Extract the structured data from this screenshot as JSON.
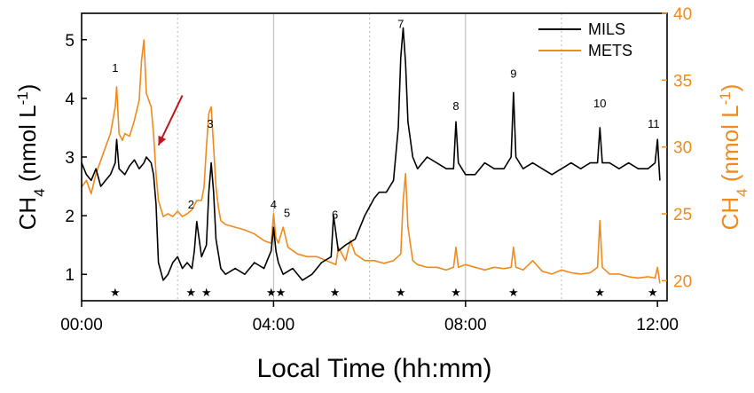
{
  "colors": {
    "mils": "#000000",
    "mets": "#f08a1c",
    "arrow": "#c0161d",
    "grid": "#b8b8b8"
  },
  "chart_data": {
    "type": "line",
    "xlabel": "Local Time (hh:mm)",
    "ylabel_left": {
      "base": "CH",
      "sub": "4",
      "unit": " (nmol L",
      "exp": "-1",
      "close": ")"
    },
    "ylabel_right": {
      "base": "CH",
      "sub": "4",
      "unit": " (nmol L",
      "exp": "-1",
      "close": ")"
    },
    "x_range_hours": [
      0,
      12.2
    ],
    "x_ticks": [
      {
        "hour": 0,
        "label": "00:00"
      },
      {
        "hour": 4,
        "label": "04:00"
      },
      {
        "hour": 8,
        "label": "08:00"
      },
      {
        "hour": 12,
        "label": "12:00"
      }
    ],
    "y_left_range": [
      0.55,
      5.45
    ],
    "y_left_ticks": [
      1,
      2,
      3,
      4,
      5
    ],
    "y_right_range": [
      18.5,
      40
    ],
    "y_right_ticks": [
      20,
      25,
      30,
      35,
      40
    ],
    "solid_grid_hours": [
      4,
      8
    ],
    "dotted_grid_hours": [
      2,
      6,
      10
    ],
    "legend": {
      "position": "top-right",
      "items": [
        "MILS",
        "METS"
      ]
    },
    "series": [
      {
        "name": "MILS",
        "axis": "left",
        "x": [
          0,
          0.1,
          0.2,
          0.3,
          0.4,
          0.5,
          0.6,
          0.7,
          0.73,
          0.78,
          0.9,
          1.0,
          1.1,
          1.2,
          1.3,
          1.35,
          1.45,
          1.5,
          1.55,
          1.6,
          1.7,
          1.8,
          1.9,
          2.0,
          2.1,
          2.2,
          2.3,
          2.35,
          2.4,
          2.5,
          2.6,
          2.65,
          2.7,
          2.75,
          2.8,
          2.9,
          3.0,
          3.2,
          3.4,
          3.6,
          3.8,
          3.95,
          4.0,
          4.05,
          4.1,
          4.2,
          4.4,
          4.6,
          4.8,
          5.0,
          5.2,
          5.25,
          5.35,
          5.5,
          5.7,
          5.9,
          6.1,
          6.2,
          6.35,
          6.5,
          6.6,
          6.65,
          6.7,
          6.75,
          6.8,
          6.9,
          7.0,
          7.2,
          7.4,
          7.6,
          7.75,
          7.8,
          7.85,
          8.0,
          8.2,
          8.4,
          8.6,
          8.8,
          8.95,
          9.0,
          9.05,
          9.2,
          9.4,
          9.6,
          9.8,
          10.0,
          10.2,
          10.4,
          10.6,
          10.75,
          10.8,
          10.85,
          11.0,
          11.2,
          11.4,
          11.6,
          11.8,
          11.95,
          12.0,
          12.05
        ],
        "y": [
          2.9,
          2.7,
          2.6,
          2.8,
          2.5,
          2.6,
          2.7,
          2.9,
          3.3,
          2.8,
          2.7,
          2.85,
          2.95,
          2.8,
          2.9,
          3.0,
          2.9,
          2.7,
          2.2,
          1.2,
          0.9,
          1.0,
          1.2,
          1.3,
          1.1,
          1.2,
          1.1,
          1.4,
          1.9,
          1.3,
          1.5,
          2.4,
          2.9,
          2.4,
          1.6,
          1.1,
          1.0,
          1.1,
          1.0,
          1.2,
          1.1,
          1.4,
          1.8,
          1.4,
          1.2,
          1.0,
          1.1,
          0.9,
          1.0,
          1.2,
          1.3,
          2.0,
          1.4,
          1.5,
          1.6,
          2.0,
          2.3,
          2.4,
          2.4,
          2.6,
          3.5,
          4.7,
          5.2,
          4.6,
          3.6,
          3.0,
          2.8,
          3.0,
          2.9,
          2.8,
          2.8,
          3.6,
          2.9,
          2.7,
          2.7,
          2.9,
          2.8,
          2.8,
          3.0,
          4.1,
          3.0,
          2.8,
          2.9,
          2.8,
          2.7,
          2.8,
          2.9,
          2.8,
          2.9,
          2.9,
          3.5,
          2.9,
          2.9,
          2.8,
          2.9,
          2.8,
          2.8,
          2.9,
          3.3,
          2.6
        ]
      },
      {
        "name": "METS",
        "axis": "right",
        "x": [
          0,
          0.1,
          0.2,
          0.3,
          0.4,
          0.5,
          0.6,
          0.7,
          0.73,
          0.78,
          0.85,
          0.9,
          1.0,
          1.1,
          1.2,
          1.25,
          1.3,
          1.35,
          1.45,
          1.5,
          1.55,
          1.6,
          1.7,
          1.8,
          1.9,
          2.0,
          2.1,
          2.2,
          2.3,
          2.4,
          2.5,
          2.55,
          2.6,
          2.65,
          2.7,
          2.75,
          2.8,
          2.85,
          2.9,
          3.0,
          3.2,
          3.4,
          3.6,
          3.8,
          3.95,
          4.0,
          4.05,
          4.1,
          4.2,
          4.3,
          4.5,
          4.7,
          4.9,
          5.1,
          5.3,
          5.35,
          5.5,
          5.6,
          5.7,
          5.9,
          6.1,
          6.3,
          6.5,
          6.65,
          6.7,
          6.75,
          6.8,
          6.9,
          7.0,
          7.2,
          7.4,
          7.6,
          7.75,
          7.8,
          7.85,
          8.0,
          8.2,
          8.4,
          8.6,
          8.8,
          8.95,
          9.0,
          9.05,
          9.2,
          9.4,
          9.6,
          9.8,
          10.0,
          10.2,
          10.4,
          10.6,
          10.75,
          10.8,
          10.85,
          11.0,
          11.2,
          11.4,
          11.6,
          11.8,
          11.95,
          12.0,
          12.05
        ],
        "y": [
          27.0,
          27.5,
          26.5,
          28.0,
          29.0,
          30.0,
          31.0,
          33.0,
          34.5,
          31.0,
          30.5,
          31.0,
          30.8,
          32.0,
          33.5,
          36.5,
          38.0,
          34.0,
          33.0,
          31.0,
          28.0,
          26.0,
          24.8,
          25.0,
          24.8,
          25.2,
          24.8,
          25.0,
          25.3,
          26.0,
          26.0,
          27.0,
          30.0,
          32.5,
          33.0,
          30.0,
          27.0,
          25.5,
          24.5,
          24.2,
          24.0,
          23.8,
          23.5,
          23.0,
          22.8,
          25.0,
          23.2,
          22.8,
          24.0,
          22.5,
          22.0,
          21.8,
          21.8,
          21.5,
          21.2,
          22.5,
          21.5,
          23.0,
          22.0,
          21.5,
          21.5,
          21.3,
          21.5,
          22.0,
          26.0,
          28.0,
          24.0,
          21.5,
          21.2,
          21.0,
          21.0,
          20.8,
          21.0,
          22.5,
          21.0,
          21.2,
          21.0,
          20.8,
          21.0,
          20.9,
          21.0,
          22.5,
          21.0,
          20.8,
          21.5,
          20.7,
          20.5,
          20.8,
          20.6,
          20.5,
          20.6,
          21.0,
          24.5,
          21.0,
          20.5,
          20.5,
          20.3,
          20.2,
          20.3,
          20.2,
          21.0,
          19.8
        ]
      }
    ],
    "peak_labels": [
      {
        "label": "1",
        "hour": 0.7,
        "value": 4.45
      },
      {
        "label": "2",
        "hour": 2.28,
        "value": 2.12
      },
      {
        "label": "3",
        "hour": 2.68,
        "value": 3.5
      },
      {
        "label": "4",
        "hour": 4.0,
        "value": 2.12
      },
      {
        "label": "5",
        "hour": 4.28,
        "value": 1.98
      },
      {
        "label": "6",
        "hour": 5.28,
        "value": 1.95
      },
      {
        "label": "7",
        "hour": 6.65,
        "value": 5.2
      },
      {
        "label": "8",
        "hour": 7.8,
        "value": 3.8
      },
      {
        "label": "9",
        "hour": 9.0,
        "value": 4.35
      },
      {
        "label": "10",
        "hour": 10.8,
        "value": 3.85
      },
      {
        "label": "11",
        "hour": 11.92,
        "value": 3.5
      }
    ],
    "star_marker_hours": [
      0.7,
      2.28,
      2.6,
      3.95,
      4.15,
      5.28,
      6.65,
      7.8,
      9.0,
      10.8,
      11.9
    ],
    "annotations": [
      {
        "type": "arrow",
        "from_hour": 2.1,
        "from_value": 4.05,
        "to_hour": 1.6,
        "to_value": 3.2
      }
    ]
  }
}
